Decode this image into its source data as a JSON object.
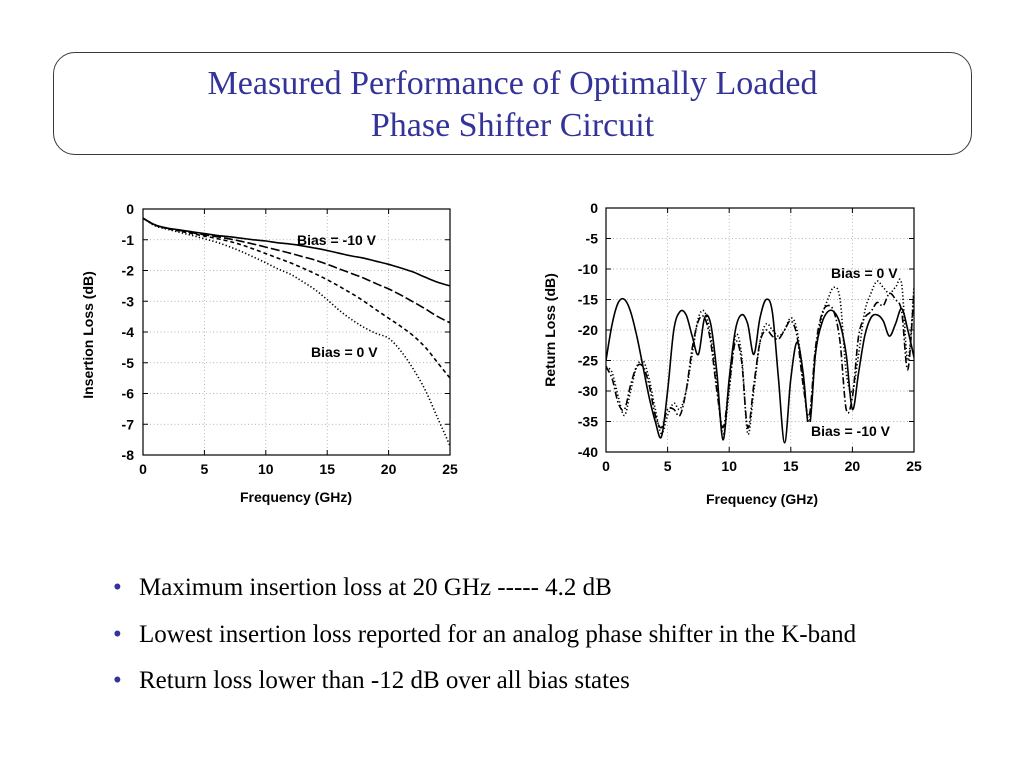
{
  "slide": {
    "title_line1": "Measured Performance of Optimally Loaded",
    "title_line2": "Phase Shifter Circuit",
    "bullet_symbol": "•",
    "bullets": [
      "Maximum insertion loss at 20 GHz ----- 4.2 dB",
      "Lowest insertion loss reported for an analog phase shifter in the K-band",
      "Return loss lower than -12 dB over all bias states"
    ]
  },
  "colors": {
    "title": "#333399",
    "bullet": "#333399",
    "text": "#000000"
  },
  "chart_data": [
    {
      "type": "line",
      "xlabel": "Frequency (GHz)",
      "ylabel": "Insertion Loss (dB)",
      "xlim": [
        0,
        25
      ],
      "ylim": [
        -8,
        0
      ],
      "xticks": [
        "0",
        "5",
        "10",
        "15",
        "20",
        "25"
      ],
      "yticks": [
        "0",
        "-1",
        "-2",
        "-3",
        "-4",
        "-5",
        "-6",
        "-7",
        "-8"
      ],
      "grid": true,
      "x": [
        0,
        1,
        2,
        3,
        4,
        5,
        6,
        7,
        8,
        9,
        10,
        11,
        12,
        13,
        14,
        15,
        16,
        17,
        18,
        19,
        20,
        21,
        22,
        23,
        24,
        25
      ],
      "series": [
        {
          "name": "Bias = -10 V",
          "line_style": "solid",
          "values": [
            -0.3,
            -0.52,
            -0.62,
            -0.68,
            -0.74,
            -0.8,
            -0.86,
            -0.9,
            -0.95,
            -1.0,
            -1.04,
            -1.1,
            -1.14,
            -1.2,
            -1.27,
            -1.35,
            -1.44,
            -1.53,
            -1.6,
            -1.7,
            -1.8,
            -1.92,
            -2.05,
            -2.22,
            -2.38,
            -2.5
          ]
        },
        {
          "line_style": "long-dash",
          "values": [
            -0.3,
            -0.52,
            -0.63,
            -0.7,
            -0.77,
            -0.84,
            -0.9,
            -0.97,
            -1.05,
            -1.14,
            -1.24,
            -1.34,
            -1.44,
            -1.55,
            -1.66,
            -1.8,
            -1.95,
            -2.1,
            -2.25,
            -2.43,
            -2.6,
            -2.8,
            -3.02,
            -3.25,
            -3.5,
            -3.7
          ]
        },
        {
          "line_style": "dash",
          "values": [
            -0.3,
            -0.53,
            -0.64,
            -0.72,
            -0.8,
            -0.88,
            -0.96,
            -1.05,
            -1.16,
            -1.3,
            -1.45,
            -1.6,
            -1.75,
            -1.92,
            -2.1,
            -2.3,
            -2.52,
            -2.75,
            -3.0,
            -3.28,
            -3.55,
            -3.82,
            -4.12,
            -4.5,
            -5.0,
            -5.5
          ]
        },
        {
          "name": "Bias = 0 V",
          "line_style": "dotted",
          "values": [
            -0.3,
            -0.55,
            -0.66,
            -0.76,
            -0.86,
            -0.97,
            -1.08,
            -1.22,
            -1.38,
            -1.56,
            -1.75,
            -1.95,
            -2.12,
            -2.36,
            -2.62,
            -2.95,
            -3.3,
            -3.6,
            -3.85,
            -4.05,
            -4.2,
            -4.62,
            -5.2,
            -5.9,
            -6.8,
            -7.7
          ]
        }
      ]
    },
    {
      "type": "line",
      "xlabel": "Frequency (GHz)",
      "ylabel": "Return Loss (dB)",
      "xlim": [
        0,
        25
      ],
      "ylim": [
        -40,
        0
      ],
      "xticks": [
        "0",
        "5",
        "10",
        "15",
        "20",
        "25"
      ],
      "yticks": [
        "0",
        "-5",
        "-10",
        "-15",
        "-20",
        "-25",
        "-30",
        "-35",
        "-40"
      ],
      "grid": true,
      "x": [
        0,
        0.5,
        1,
        1.5,
        2,
        2.5,
        3,
        3.5,
        4,
        4.5,
        5,
        5.5,
        6,
        6.5,
        7,
        7.5,
        8,
        8.5,
        9,
        9.5,
        10,
        10.5,
        11,
        11.5,
        12,
        12.5,
        13,
        13.5,
        14,
        14.5,
        15,
        15.5,
        16,
        16.5,
        17,
        17.5,
        18,
        18.5,
        19,
        19.5,
        20,
        20.5,
        21,
        21.5,
        22,
        22.5,
        23,
        23.5,
        24,
        24.5,
        25
      ],
      "series": [
        {
          "name": "Bias = -10 V",
          "line_style": "solid",
          "values": [
            -25,
            -19,
            -15.5,
            -15,
            -17,
            -21,
            -26,
            -31,
            -35,
            -37.5,
            -30,
            -20,
            -17,
            -17.5,
            -21,
            -24,
            -18,
            -19,
            -27,
            -38,
            -28,
            -20,
            -17.5,
            -19,
            -24,
            -18,
            -15,
            -17,
            -28,
            -38.5,
            -28,
            -22,
            -27,
            -36,
            -24,
            -19,
            -17,
            -17,
            -19,
            -24,
            -33,
            -27,
            -21,
            -18,
            -17.5,
            -18.5,
            -21,
            -19,
            -16.5,
            -20,
            -24.5
          ]
        },
        {
          "name": "Bias = 0 V",
          "line_style": "dotted",
          "values": [
            -26,
            -27,
            -31,
            -34,
            -30,
            -26,
            -25,
            -28,
            -33,
            -37,
            -34,
            -32,
            -33,
            -30,
            -24,
            -18,
            -17,
            -21,
            -29,
            -37,
            -30,
            -21,
            -24,
            -37,
            -30,
            -22,
            -19,
            -20,
            -21,
            -20,
            -18,
            -20,
            -28,
            -35,
            -24,
            -18,
            -15,
            -13,
            -15,
            -27,
            -30,
            -24,
            -17,
            -14,
            -12,
            -13,
            -14,
            -13,
            -12.5,
            -25,
            -13
          ]
        },
        {
          "line_style": "dash-dot",
          "values": [
            -26,
            -28,
            -32,
            -33,
            -29,
            -26,
            -26,
            -29,
            -34,
            -36,
            -33,
            -33,
            -34,
            -30,
            -23,
            -18.5,
            -18,
            -22,
            -30,
            -36,
            -29,
            -22,
            -25,
            -36,
            -29,
            -22,
            -20,
            -21,
            -21.5,
            -20,
            -18.5,
            -21,
            -29,
            -34,
            -23,
            -17.5,
            -16,
            -17,
            -22,
            -33,
            -31,
            -21,
            -18,
            -17,
            -15.5,
            -16,
            -14,
            -15,
            -17,
            -26.5,
            -13.5
          ]
        }
      ]
    }
  ]
}
